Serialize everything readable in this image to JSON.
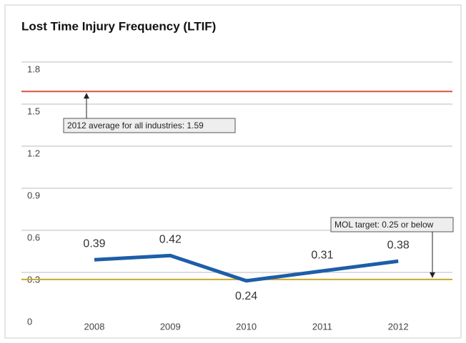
{
  "chart_data": {
    "type": "line",
    "title": "Lost Time Injury Frequency (LTIF)",
    "categories": [
      "2008",
      "2009",
      "2010",
      "2011",
      "2012"
    ],
    "series": [
      {
        "name": "LTIF",
        "color": "#1d5ea8",
        "values": [
          0.39,
          0.42,
          0.24,
          0.31,
          0.38
        ]
      }
    ],
    "ylim": [
      0,
      1.8
    ],
    "yticks": [
      0,
      0.3,
      0.6,
      0.9,
      1.2,
      1.5,
      1.8
    ],
    "grid": true,
    "reference_lines": [
      {
        "value": 1.59,
        "color": "#d9503f",
        "label": "2012 average for all industries: 1.59"
      },
      {
        "value": 0.25,
        "color": "#c8a92a",
        "label": "MOL target: 0.25 or below"
      }
    ]
  }
}
